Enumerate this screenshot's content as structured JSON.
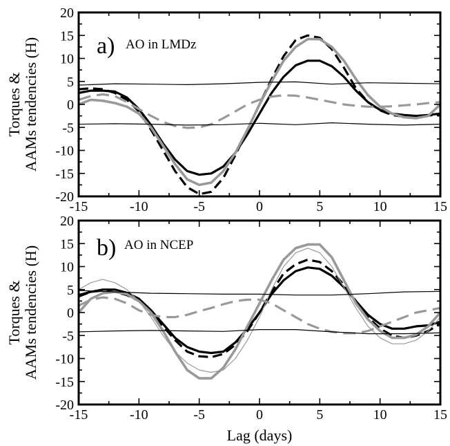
{
  "chart_data": [
    {
      "type": "line",
      "panel_letter": "a)",
      "panel_title": "AO in LMDz",
      "ylabel_lines": [
        "Torques &",
        "AAMs tendencies (H)"
      ],
      "xlim": [
        -15,
        15
      ],
      "ylim": [
        -20,
        20
      ],
      "xticks": [
        -15,
        -10,
        -5,
        0,
        5,
        10,
        15
      ],
      "yticks": [
        -20,
        -15,
        -10,
        -5,
        0,
        5,
        10,
        15,
        20
      ],
      "series": [
        {
          "style": "thick-black-solid",
          "x": [
            -15,
            -14,
            -13,
            -12,
            -11,
            -10,
            -9,
            -8,
            -7,
            -6,
            -5,
            -4,
            -3,
            -2,
            -1,
            0,
            1,
            2,
            3,
            4,
            5,
            6,
            7,
            8,
            9,
            10,
            11,
            12,
            13,
            14,
            15
          ],
          "y": [
            2.5,
            3,
            3,
            2.8,
            1.5,
            -1,
            -4.5,
            -8.5,
            -12,
            -14.5,
            -15.3,
            -15,
            -13.5,
            -10.5,
            -6.5,
            -2,
            2.5,
            6,
            8.5,
            9.5,
            9.5,
            8.3,
            6,
            3,
            0.5,
            -1.2,
            -2,
            -2.3,
            -2.5,
            -2.3,
            -2
          ]
        },
        {
          "style": "thick-black-dashed",
          "x": [
            -15,
            -14,
            -13,
            -12,
            -11,
            -10,
            -9,
            -8,
            -7,
            -6,
            -5,
            -4,
            -3,
            -2,
            -1,
            0,
            1,
            2,
            3,
            4,
            5,
            6,
            7,
            8,
            9,
            10,
            11,
            12,
            13,
            14,
            15
          ],
          "y": [
            3.3,
            3.5,
            3.3,
            2.5,
            1,
            -1.5,
            -5.5,
            -10,
            -14.5,
            -18,
            -19.5,
            -19,
            -16,
            -11,
            -5.5,
            0,
            5.5,
            10.5,
            14,
            15,
            14.5,
            12,
            8,
            3.5,
            0.5,
            -1.3,
            -2.3,
            -2.7,
            -2.7,
            -2.4,
            -2.2
          ]
        },
        {
          "style": "thick-gray-solid",
          "x": [
            -15,
            -14,
            -13,
            -12,
            -11,
            -10,
            -9,
            -8,
            -7,
            -6,
            -5,
            -4,
            -3,
            -2,
            -1,
            0,
            1,
            2,
            3,
            4,
            5,
            6,
            7,
            8,
            9,
            10,
            11,
            12,
            13,
            14,
            15
          ],
          "y": [
            0,
            1,
            0.8,
            0.3,
            -0.5,
            -2,
            -5,
            -9,
            -13,
            -16.3,
            -17.5,
            -17,
            -14.5,
            -10.5,
            -5.5,
            0,
            5,
            9.5,
            12.5,
            14.2,
            14.2,
            12.5,
            9.5,
            5.5,
            2,
            -0.5,
            -2,
            -2.8,
            -3,
            -2.5,
            0
          ]
        },
        {
          "style": "thick-gray-dashed",
          "x": [
            -15,
            -14,
            -13,
            -12,
            -11,
            -10,
            -9,
            -8,
            -7,
            -6,
            -5,
            -4,
            -3,
            -2,
            -1,
            0,
            1,
            2,
            3,
            4,
            5,
            6,
            7,
            8,
            9,
            10,
            11,
            12,
            13,
            14,
            15
          ],
          "y": [
            1,
            1.8,
            2.2,
            1.8,
            0.5,
            -1,
            -2.5,
            -3.8,
            -4.7,
            -5.1,
            -5,
            -4.3,
            -3,
            -1.5,
            0,
            1,
            1.7,
            2,
            1.9,
            1.5,
            1,
            0.5,
            0,
            -0.3,
            -0.5,
            -0.5,
            -0.4,
            -0.2,
            0,
            0.3,
            0.5
          ]
        },
        {
          "style": "thin-black-solid",
          "x": [
            -15,
            -12,
            -9,
            -6,
            -3,
            0,
            3,
            6,
            9,
            12,
            15
          ],
          "y": [
            4.2,
            4.5,
            4.4,
            4.3,
            4.5,
            4.8,
            4.9,
            4.4,
            4.7,
            4.6,
            4.5
          ]
        },
        {
          "style": "thin-black-solid",
          "x": [
            -15,
            -12,
            -9,
            -6,
            -3,
            0,
            3,
            6,
            9,
            12,
            15
          ],
          "y": [
            -4.3,
            -4.2,
            -4.3,
            -4.5,
            -4.4,
            -4.1,
            -4.4,
            -4.0,
            -4.3,
            -4.5,
            -4.3
          ]
        }
      ]
    },
    {
      "type": "line",
      "panel_letter": "b)",
      "panel_title": "AO in NCEP",
      "xlabel": "Lag (days)",
      "ylabel_lines": [
        "Torques &",
        "AAMs tendencies (H)"
      ],
      "xlim": [
        -15,
        15
      ],
      "ylim": [
        -20,
        20
      ],
      "xticks": [
        -15,
        -10,
        -5,
        0,
        5,
        10,
        15
      ],
      "yticks": [
        -20,
        -15,
        -10,
        -5,
        0,
        5,
        10,
        15,
        20
      ],
      "series": [
        {
          "style": "thick-black-solid",
          "x": [
            -15,
            -14,
            -13,
            -12,
            -11,
            -10,
            -9,
            -8,
            -7,
            -6,
            -5,
            -4,
            -3,
            -2,
            -1,
            0,
            1,
            2,
            3,
            4,
            5,
            6,
            7,
            8,
            9,
            10,
            11,
            12,
            13,
            14,
            15
          ],
          "y": [
            3.8,
            4.5,
            5,
            5,
            4.3,
            3,
            0.5,
            -2.5,
            -5.5,
            -7.5,
            -8.5,
            -8.8,
            -8.5,
            -6.5,
            -3.5,
            0,
            4,
            7,
            9,
            9.8,
            9.5,
            8,
            5.5,
            2.5,
            -0.5,
            -2.5,
            -3.5,
            -3.5,
            -3,
            -2.8,
            -2
          ]
        },
        {
          "style": "thick-black-dashed",
          "x": [
            -15,
            -14,
            -13,
            -12,
            -11,
            -10,
            -9,
            -8,
            -7,
            -6,
            -5,
            -4,
            -3,
            -2,
            -1,
            0,
            1,
            2,
            3,
            4,
            5,
            6,
            7,
            8,
            9,
            10,
            11,
            12,
            13,
            14,
            15
          ],
          "y": [
            3.5,
            4.5,
            4.8,
            4.5,
            3.8,
            2.5,
            0,
            -3,
            -6,
            -8.5,
            -9.5,
            -9.7,
            -9,
            -7,
            -4,
            0,
            4.5,
            8.5,
            10.5,
            11.5,
            11,
            9,
            6,
            2.5,
            -1,
            -3.5,
            -5,
            -5.5,
            -5,
            -4,
            -2.5
          ]
        },
        {
          "style": "thick-gray-solid",
          "x": [
            -15,
            -14,
            -13,
            -12,
            -11,
            -10,
            -9,
            -8,
            -7,
            -6,
            -5,
            -4,
            -3,
            -2,
            -1,
            0,
            1,
            2,
            3,
            4,
            5,
            6,
            7,
            8,
            9,
            10,
            11,
            12,
            13,
            14,
            15
          ],
          "y": [
            0,
            3,
            4.2,
            4.5,
            4,
            2.5,
            0,
            -4,
            -8.5,
            -12.5,
            -14.3,
            -14.3,
            -12,
            -8,
            -3,
            2,
            7,
            11.5,
            14,
            14.8,
            14.8,
            12,
            7,
            2,
            -1.5,
            -4,
            -5.5,
            -5.5,
            -4.8,
            -3,
            0
          ]
        },
        {
          "style": "thick-gray-dashed",
          "x": [
            -15,
            -14,
            -13,
            -12,
            -11,
            -10,
            -9,
            -8,
            -7,
            -6,
            -5,
            -4,
            -3,
            -2,
            -1,
            0,
            1,
            2,
            3,
            4,
            5,
            6,
            7,
            8,
            9,
            10,
            11,
            12,
            13,
            14,
            15
          ],
          "y": [
            1.5,
            2.8,
            3.3,
            3,
            2,
            0.5,
            -0.5,
            -1,
            -1,
            -0.5,
            0.3,
            1,
            1.8,
            2.5,
            2.8,
            2.8,
            2,
            0.5,
            -1,
            -2.5,
            -3.5,
            -4.2,
            -4.5,
            -4.5,
            -4,
            -3,
            -2,
            -1,
            0,
            0.5,
            1
          ]
        },
        {
          "style": "thin-gray-solid",
          "x": [
            -15,
            -14,
            -13,
            -12,
            -11,
            -10,
            -9,
            -8,
            -7,
            -6,
            -5,
            -4,
            -3,
            -2,
            -1,
            0,
            1,
            2,
            3,
            4,
            5,
            6,
            7,
            8,
            9,
            10,
            11,
            12,
            13,
            14,
            15
          ],
          "y": [
            5,
            6.5,
            7.2,
            6.5,
            5,
            2.5,
            -1,
            -5,
            -8.5,
            -11,
            -12.5,
            -13,
            -12.5,
            -10,
            -6,
            -1,
            5,
            10,
            13,
            14,
            13,
            10,
            5.5,
            1,
            -3,
            -5.5,
            -6.8,
            -6.8,
            -6,
            -4,
            -1
          ]
        },
        {
          "style": "thin-black-solid",
          "x": [
            -15,
            -12,
            -9,
            -6,
            -3,
            0,
            3,
            6,
            9,
            12,
            15
          ],
          "y": [
            4.8,
            4.5,
            4.2,
            4.1,
            4.0,
            4.0,
            3.8,
            3.8,
            4.1,
            4.5,
            4.6
          ]
        },
        {
          "style": "thin-black-solid",
          "x": [
            -15,
            -12,
            -9,
            -6,
            -3,
            0,
            3,
            6,
            9,
            12,
            15
          ],
          "y": [
            -4.2,
            -4.0,
            -3.9,
            -4.0,
            -4.1,
            -3.7,
            -3.7,
            -4.2,
            -4.6,
            -4.6,
            -4.4
          ]
        }
      ]
    }
  ]
}
